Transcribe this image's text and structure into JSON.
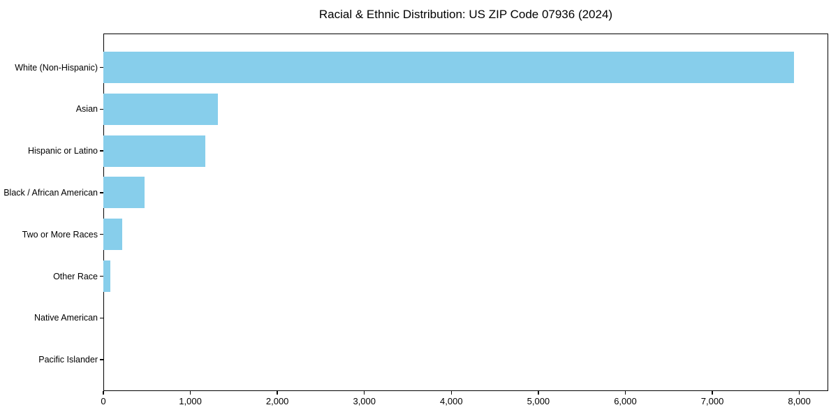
{
  "chart_data": {
    "type": "bar",
    "orientation": "horizontal",
    "title": "Racial & Ethnic Distribution: US ZIP Code 07936 (2024)",
    "categories": [
      "White (Non-Hispanic)",
      "Asian",
      "Hispanic or Latino",
      "Black / African American",
      "Two or More Races",
      "Other Race",
      "Native American",
      "Pacific Islander"
    ],
    "values": [
      7935,
      1316,
      1170,
      471,
      217,
      80,
      0,
      0
    ],
    "xlabel": "",
    "ylabel": "",
    "xlim": [
      0,
      8332
    ],
    "x_ticks": [
      0,
      1000,
      2000,
      3000,
      4000,
      5000,
      6000,
      7000,
      8000
    ],
    "x_tick_labels": [
      "0",
      "1,000",
      "2,000",
      "3,000",
      "4,000",
      "5,000",
      "6,000",
      "7,000",
      "8,000"
    ],
    "bar_color": "#87CEEB",
    "axis_color": "#000000",
    "background_color": "#ffffff",
    "grid": false,
    "legend": null
  }
}
